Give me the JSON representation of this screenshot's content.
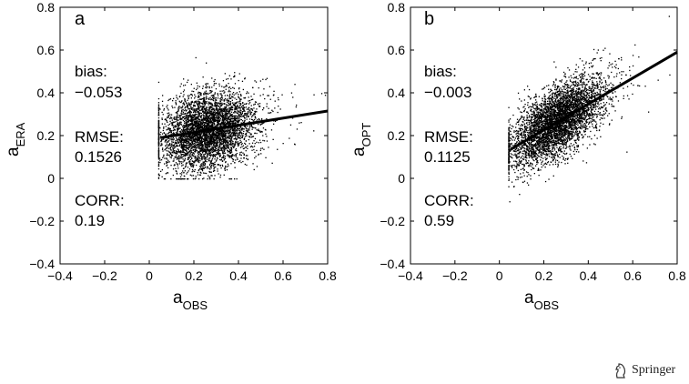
{
  "footer": {
    "publisher": "Springer",
    "logo_icon": "springer-knight-icon"
  },
  "chart_data": [
    {
      "type": "scatter",
      "panel_label": "a",
      "xlabel": {
        "base": "a",
        "sub": "OBS"
      },
      "ylabel": {
        "base": "a",
        "sub": "ERA"
      },
      "xlim": [
        -0.4,
        0.8
      ],
      "ylim": [
        -0.4,
        0.8
      ],
      "xticks": [
        "−0.4",
        "−0.2",
        "0",
        "0.2",
        "0.4",
        "0.6",
        "0.8"
      ],
      "yticks": [
        "−0.4",
        "−0.2",
        "0",
        "0.2",
        "0.4",
        "0.6",
        "0.8"
      ],
      "stats": {
        "bias_label": "bias:",
        "bias": "−0.053",
        "rmse_label": "RMSE:",
        "rmse": "0.1526",
        "corr_label": "CORR:",
        "corr": "0.19"
      },
      "fit_line": {
        "x": [
          0.05,
          0.8
        ],
        "y": [
          0.19,
          0.315
        ]
      },
      "scatter_cloud": {
        "n_points": 4500,
        "x_center": 0.26,
        "x_sd": 0.1,
        "x_min": 0.04,
        "x_max": 0.8,
        "y_intercept": 0.18,
        "y_slope": 0.19,
        "y_sd": 0.09,
        "y_min": 0.0,
        "y_max": 0.75
      },
      "point_color": "#000000"
    },
    {
      "type": "scatter",
      "panel_label": "b",
      "xlabel": {
        "base": "a",
        "sub": "OBS"
      },
      "ylabel": {
        "base": "a",
        "sub": "OPT"
      },
      "xlim": [
        -0.4,
        0.8
      ],
      "ylim": [
        -0.4,
        0.8
      ],
      "xticks": [
        "−0.4",
        "−0.2",
        "0",
        "0.2",
        "0.4",
        "0.6",
        "0.8"
      ],
      "yticks": [
        "−0.4",
        "−0.2",
        "0",
        "0.2",
        "0.4",
        "0.6",
        "0.8"
      ],
      "stats": {
        "bias_label": "bias:",
        "bias": "−0.003",
        "rmse_label": "RMSE:",
        "rmse": "0.1125",
        "corr_label": "CORR:",
        "corr": "0.59"
      },
      "fit_line": {
        "x": [
          0.05,
          0.8
        ],
        "y": [
          0.135,
          0.59
        ]
      },
      "scatter_cloud": {
        "n_points": 4500,
        "x_center": 0.26,
        "x_sd": 0.1,
        "x_min": 0.04,
        "x_max": 0.8,
        "y_intercept": 0.11,
        "y_slope": 0.62,
        "y_sd": 0.08,
        "y_min": -0.36,
        "y_max": 0.76
      },
      "point_color": "#000000"
    }
  ]
}
